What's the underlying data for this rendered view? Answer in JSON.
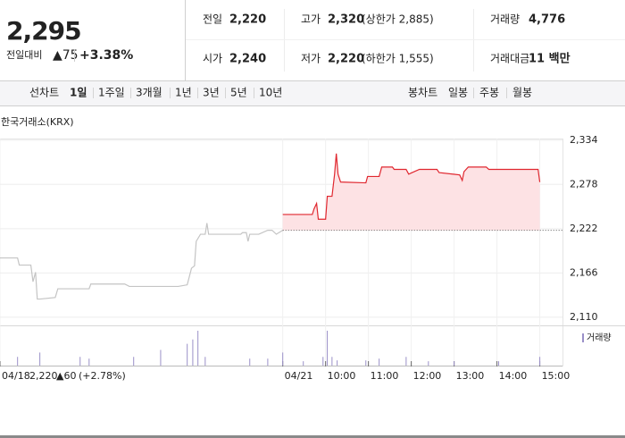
{
  "quote": {
    "price": "2,295",
    "change_label": "전일대비",
    "change": "▲75",
    "rate": "+3.38%"
  },
  "stats": [
    [
      {
        "label": "전일",
        "value": "2,220",
        "color": "#222222"
      },
      {
        "label": "고가",
        "value": "2,320",
        "note": "(상한가 2,885)",
        "color": "#e0272f"
      },
      {
        "label": "거래량",
        "value": "4,776",
        "color": "#222222"
      }
    ],
    [
      {
        "label": "시가",
        "value": "2,240",
        "color": "#e0272f"
      },
      {
        "label": "저가",
        "value": "2,220",
        "note": "(하한가 1,555)",
        "color": "#222222"
      },
      {
        "label": "거래대금",
        "value": "11 백만",
        "color": "#222222"
      }
    ]
  ],
  "tabs": {
    "line_label": "선차트",
    "line_options": [
      "1일",
      "1주일",
      "3개월",
      "1년",
      "3년",
      "5년",
      "10년"
    ],
    "active_index": 0,
    "candle_label": "봉차트",
    "candle_options": [
      "일봉",
      "주봉",
      "월봉"
    ]
  },
  "chart_data": {
    "type": "line",
    "source": "한국거래소(KRX)",
    "xlim": [
      -6.6,
      6.53
    ],
    "xticks": [
      {
        "value": -6.6,
        "label": "04/18"
      },
      {
        "value": 0,
        "label": "04/21"
      },
      {
        "value": 1,
        "label": "10:00"
      },
      {
        "value": 2,
        "label": "11:00"
      },
      {
        "value": 3,
        "label": "12:00"
      },
      {
        "value": 4,
        "label": "13:00"
      },
      {
        "value": 5,
        "label": "14:00"
      },
      {
        "value": 6,
        "label": "15:00"
      }
    ],
    "ylim": [
      2102,
      2336
    ],
    "yticks": [
      {
        "value": 2110,
        "label": "2,110"
      },
      {
        "value": 2166,
        "label": "2,166"
      },
      {
        "value": 2222,
        "label": "2,222"
      },
      {
        "value": 2278,
        "label": "2,278"
      },
      {
        "value": 2334,
        "label": "2,334"
      }
    ],
    "grid": true,
    "reference_line": 2220,
    "series": [
      {
        "color": "#c4c4c4",
        "x": [
          -6.6,
          -6.19,
          -6.15,
          -5.88,
          -5.83,
          -5.77,
          -5.73,
          -5.67,
          -5.31,
          -5.25,
          -4.52,
          -4.48,
          -3.69,
          -3.58,
          -2.44,
          -2.23,
          -2.13,
          -2.06,
          -2.02,
          -1.92,
          -1.81,
          -1.77,
          -1.73,
          -0.98,
          -0.94,
          -0.85,
          -0.81,
          -0.77,
          -0.56,
          -0.35,
          -0.25,
          -0.15,
          0
        ],
        "values": [
          2185,
          2185,
          2176,
          2176,
          2155,
          2167,
          2133,
          2133,
          2135,
          2146,
          2146,
          2152,
          2152,
          2149,
          2149,
          2151,
          2172,
          2175,
          2206,
          2215,
          2215,
          2229,
          2215,
          2215,
          2217,
          2217,
          2206,
          2215,
          2215,
          2220,
          2220,
          2215,
          2220
        ]
      },
      {
        "color": "#e0272f",
        "fill": "#fde2e4",
        "x": [
          0,
          0.69,
          0.73,
          0.79,
          0.83,
          1.0,
          1.04,
          1.15,
          1.21,
          1.25,
          1.29,
          1.35,
          1.94,
          1.98,
          2.25,
          2.31,
          2.56,
          2.6,
          2.88,
          2.94,
          3.02,
          3.19,
          3.6,
          3.65,
          4.13,
          4.19,
          4.23,
          4.33,
          4.75,
          4.81,
          5.96,
          6.0
        ],
        "values": [
          2240,
          2240,
          2247,
          2254,
          2234,
          2234,
          2263,
          2263,
          2291,
          2317,
          2291,
          2281,
          2280,
          2288,
          2288,
          2300,
          2300,
          2297,
          2297,
          2291,
          2293,
          2297,
          2297,
          2293,
          2290,
          2283,
          2294,
          2300,
          2300,
          2297,
          2297,
          2281
        ]
      }
    ],
    "volume": {
      "name": "거래량",
      "color": "#9a90c8",
      "ylim": [
        0,
        40
      ],
      "x": [
        -6.19,
        -5.67,
        -4.73,
        -4.52,
        -3.48,
        -2.85,
        -2.23,
        -2.1,
        -1.98,
        -1.81,
        -0.77,
        -0.35,
        0,
        0.48,
        0.94,
        1.04,
        1.15,
        1.27,
        1.94,
        2.25,
        2.88,
        3.4,
        4.0,
        5.04,
        6.0
      ],
      "values": [
        10,
        15,
        10,
        8,
        10,
        18,
        25,
        30,
        40,
        10,
        8,
        8,
        15,
        5,
        10,
        40,
        10,
        6,
        6,
        8,
        10,
        5,
        5,
        5,
        10
      ]
    },
    "prev_day_summary": {
      "price": "2,220",
      "change": "▲60",
      "rate": "(+2.78%)"
    }
  }
}
